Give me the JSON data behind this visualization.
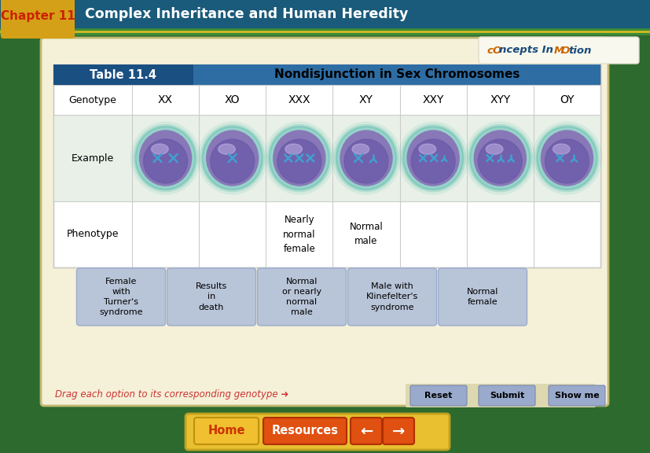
{
  "title_chapter": "Chapter 11",
  "title_main": "Complex Inheritance and Human Heredity",
  "header_bg": "#1a5a7a",
  "chapter_bg": "#d4a017",
  "chapter_text_color": "#cc2200",
  "table_title": "Table 11.4",
  "table_subtitle": "Nondisjunction in Sex Chromosomes",
  "table_title_bg": "#2e6da4",
  "outer_bg": "#2d6a2d",
  "inner_bg": "#f5f0d8",
  "table_bg": "#ffffff",
  "row_example_bg": "#ddeedd",
  "row_pheno_bg": "#eef3ee",
  "genotypes": [
    "XX",
    "XO",
    "XXX",
    "XY",
    "XXY",
    "XYY",
    "OY"
  ],
  "phenotypes": [
    "",
    "",
    "Nearly\nnormal\nfemale",
    "Normal\nmale",
    "",
    "",
    ""
  ],
  "drag_options": [
    "Female\nwith\nTurner's\nsyndrome",
    "Results\nin\ndeath",
    "Normal\nor nearly\nnormal\nmale",
    "Male with\nKlinefelter's\nsyndrome",
    "Normal\nfemale"
  ],
  "button_labels": [
    "Reset",
    "Submit",
    "Show me"
  ],
  "drag_text": "Drag each option to its corresponding genotype",
  "drag_arrow": "➜",
  "home_label": "Home",
  "resources_label": "Resources",
  "drag_btn_bg": "#b8c4d8",
  "bottom_btn_bg": "#99aacc",
  "nav_outer_bg": "#e8c840",
  "home_btn_bg": "#f0c030",
  "home_text_color": "#cc3300",
  "res_btn_bg": "#e05010",
  "arrow_btn_bg": "#e05010",
  "concepts_logo_bg": "#f0f0f0"
}
